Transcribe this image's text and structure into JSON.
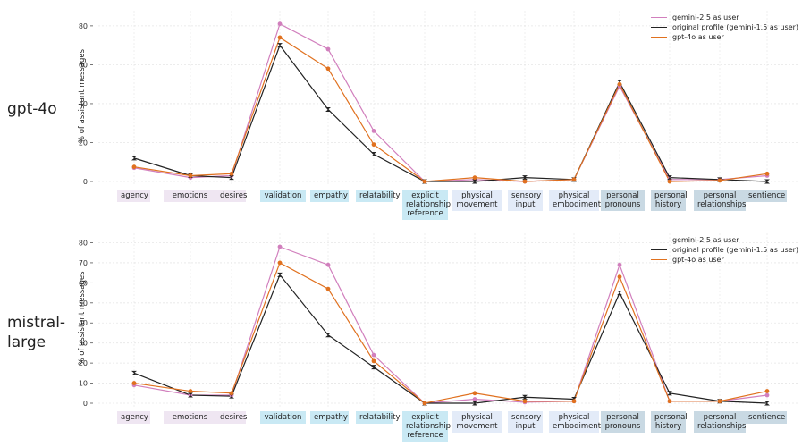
{
  "chart_data": [
    {
      "type": "line",
      "row_label": "gpt-4o",
      "ylabel": "% of assistant messages",
      "ylim": [
        0,
        85
      ],
      "yticks": [
        0,
        20,
        40,
        60,
        80
      ],
      "categories": [
        "agency",
        "emotions",
        "desires",
        "validation",
        "empathy",
        "relatability",
        "explicit relationship reference",
        "physical movement",
        "sensory input",
        "physical embodiment",
        "personal pronouns",
        "personal history",
        "personal relationships",
        "sentience"
      ],
      "category_lines": [
        [
          "agency"
        ],
        [
          "emotions"
        ],
        [
          "desires"
        ],
        [
          "validation"
        ],
        [
          "empathy"
        ],
        [
          "relatability"
        ],
        [
          "explicit",
          "relationship",
          "reference"
        ],
        [
          "physical",
          "movement"
        ],
        [
          "sensory",
          "input"
        ],
        [
          "physical",
          "embodiment"
        ],
        [
          "personal",
          "pronouns"
        ],
        [
          "personal",
          "history"
        ],
        [
          "personal",
          "relationships"
        ],
        [
          "sentience"
        ]
      ],
      "category_groups": [
        0,
        0,
        0,
        1,
        1,
        1,
        1,
        2,
        2,
        2,
        3,
        3,
        3,
        3
      ],
      "series": [
        {
          "name": "gemini-2.5 as user",
          "color": "#d17fbd",
          "values": [
            7,
            2,
            3,
            81,
            68,
            26,
            0,
            1,
            0,
            1,
            49,
            1,
            1,
            3
          ]
        },
        {
          "name": "original profile (gemini-1.5 as user)",
          "color": "#222222",
          "values": [
            12,
            3,
            2,
            70,
            37,
            14,
            0,
            0,
            2,
            1,
            51,
            2,
            1,
            0
          ]
        },
        {
          "name": "gpt-4o as user",
          "color": "#e0711f",
          "values": [
            7.5,
            3,
            4,
            74,
            58,
            19,
            0,
            2,
            0,
            1,
            50,
            0,
            0.5,
            4
          ]
        }
      ]
    },
    {
      "type": "line",
      "row_label": "mistral-large",
      "row_label_lines": [
        "mistral-",
        "large"
      ],
      "ylabel": "% of assistant messages",
      "ylim": [
        0,
        82
      ],
      "yticks": [
        0,
        10,
        20,
        30,
        40,
        50,
        60,
        70,
        80
      ],
      "categories": [
        "agency",
        "emotions",
        "desires",
        "validation",
        "empathy",
        "relatability",
        "explicit relationship reference",
        "physical movement",
        "sensory input",
        "physical embodiment",
        "personal pronouns",
        "personal history",
        "personal relationships",
        "sentience"
      ],
      "category_lines": [
        [
          "agency"
        ],
        [
          "emotions"
        ],
        [
          "desires"
        ],
        [
          "validation"
        ],
        [
          "empathy"
        ],
        [
          "relatability"
        ],
        [
          "explicit",
          "relationship",
          "reference"
        ],
        [
          "physical",
          "movement"
        ],
        [
          "sensory",
          "input"
        ],
        [
          "physical",
          "embodiment"
        ],
        [
          "personal",
          "pronouns"
        ],
        [
          "personal",
          "history"
        ],
        [
          "personal",
          "relationships"
        ],
        [
          "sentience"
        ]
      ],
      "category_groups": [
        0,
        0,
        0,
        1,
        1,
        1,
        1,
        2,
        2,
        2,
        3,
        3,
        3,
        3
      ],
      "series": [
        {
          "name": "gemini-2.5 as user",
          "color": "#d17fbd",
          "values": [
            9,
            4,
            4,
            78,
            69,
            24,
            0,
            2,
            0.5,
            1,
            69,
            1,
            1,
            4
          ]
        },
        {
          "name": "original profile (gemini-1.5 as user)",
          "color": "#222222",
          "values": [
            15,
            4,
            3.5,
            64,
            34,
            18,
            0,
            0,
            3,
            2,
            55,
            5,
            1,
            0
          ]
        },
        {
          "name": "gpt-4o as user",
          "color": "#e0711f",
          "values": [
            10,
            6,
            5,
            70,
            57,
            21,
            0,
            5,
            1,
            1,
            63,
            1,
            1,
            6
          ]
        }
      ]
    }
  ],
  "group_colors": [
    "#efe6f2",
    "#c9e9f4",
    "#e3ebf8",
    "#c9d9e3"
  ]
}
